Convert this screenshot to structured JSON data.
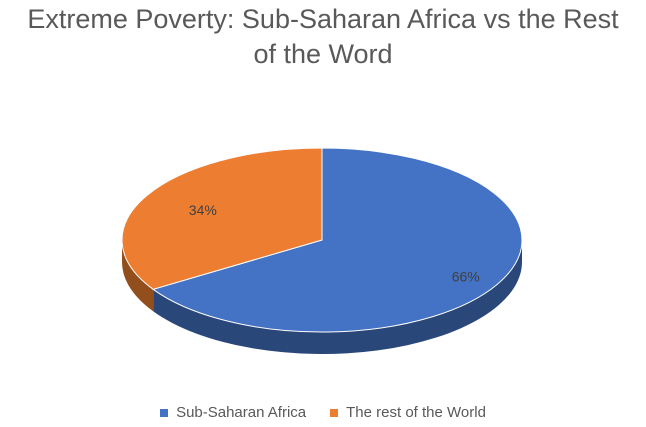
{
  "title_lines": [
    "Extreme Poverty: Sub-Saharan Africa vs the Rest",
    "of the Word"
  ],
  "chart_data": {
    "type": "pie",
    "title": "Extreme Poverty: Sub-Saharan Africa vs the Rest of the Word",
    "style": "3d",
    "categories": [
      "Sub-Saharan Africa",
      "The rest of the World"
    ],
    "values": [
      66,
      34
    ],
    "data_labels": [
      "66%",
      "34%"
    ],
    "colors": [
      "#4472C4",
      "#ED7D31"
    ],
    "legend_position": "bottom"
  }
}
